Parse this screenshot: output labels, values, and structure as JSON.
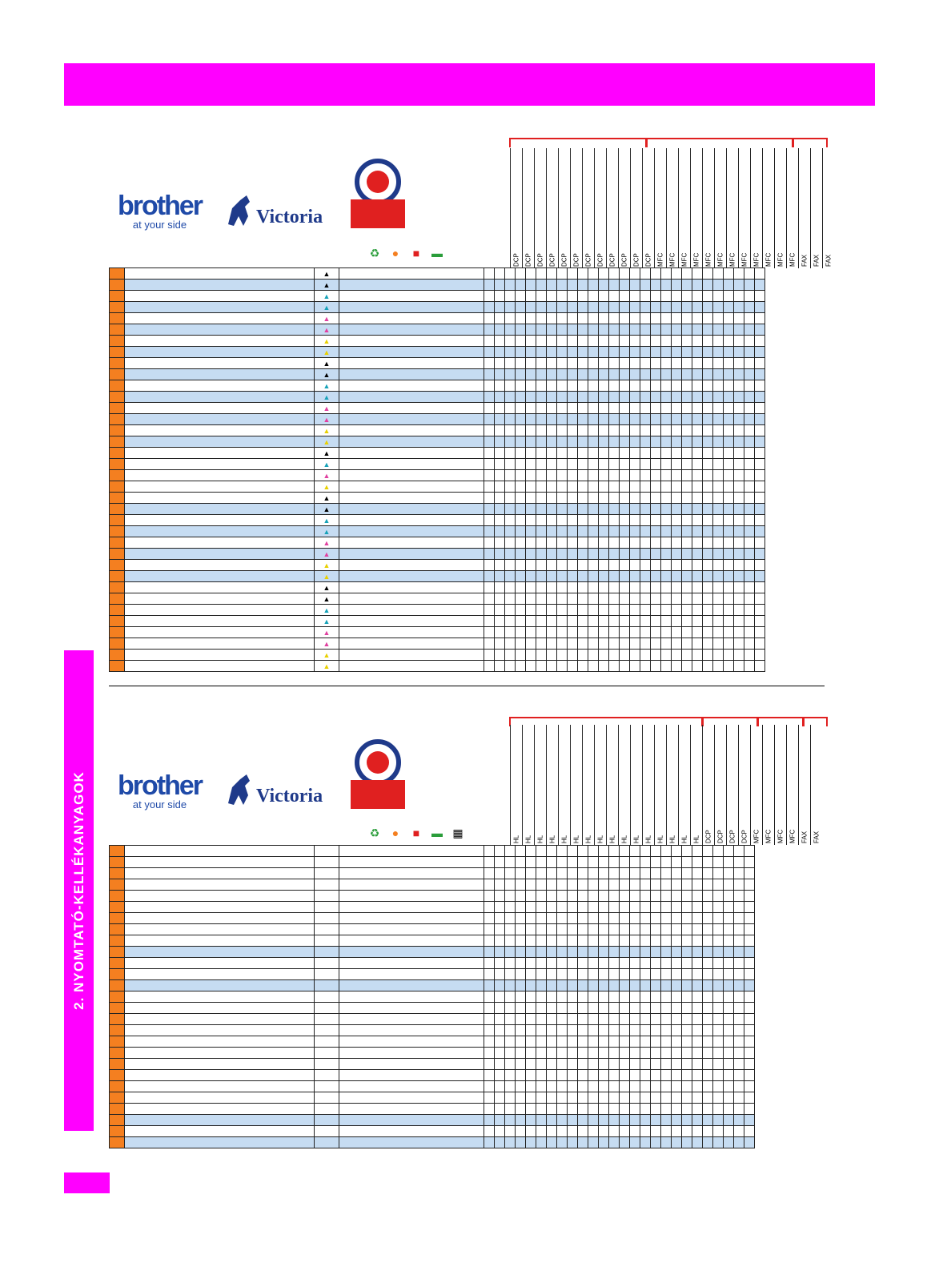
{
  "side_tab": {
    "label": "2. NYOMTATÓ-KELLÉKANYAGOK"
  },
  "logos": {
    "brother_word": "brother",
    "brother_tagline": "at your side",
    "victoria": "Victoria"
  },
  "colors": {
    "magenta": "#ff00ff",
    "orange": "#f47f20",
    "row_highlight": "#c6dcf2",
    "brace_red": "#e02020"
  },
  "table1": {
    "models": [
      "DCP",
      "DCP",
      "DCP",
      "DCP",
      "DCP",
      "DCP",
      "DCP",
      "DCP",
      "DCP",
      "DCP",
      "DCP",
      "DCP",
      "MFC",
      "MFC",
      "MFC",
      "MFC",
      "MFC",
      "MFC",
      "MFC",
      "MFC",
      "MFC",
      "MFC",
      "MFC",
      "MFC",
      "FAX",
      "FAX",
      "FAX"
    ],
    "rows": 36,
    "highlight_rows": [
      1,
      3,
      5,
      7,
      9,
      11,
      13,
      15,
      21,
      23,
      25,
      27
    ],
    "drop_colors": [
      "#000",
      "#000",
      "#17a2b8",
      "#17a2b8",
      "#e040a0",
      "#e040a0",
      "#e8d000",
      "#e8d000",
      "#000",
      "#000",
      "#17a2b8",
      "#17a2b8",
      "#e040a0",
      "#e040a0",
      "#e8d000",
      "#e8d000",
      "#000",
      "#17a2b8",
      "#e040a0",
      "#e8d000",
      "#000",
      "#000",
      "#17a2b8",
      "#17a2b8",
      "#e040a0",
      "#e040a0",
      "#e8d000",
      "#e8d000",
      "#000",
      "#000",
      "#17a2b8",
      "#17a2b8",
      "#e040a0",
      "#e040a0",
      "#e8d000",
      "#e8d000"
    ]
  },
  "table2": {
    "models": [
      "HL",
      "HL",
      "HL",
      "HL",
      "HL",
      "HL",
      "HL",
      "HL",
      "HL",
      "HL",
      "HL",
      "HL",
      "HL",
      "HL",
      "HL",
      "HL",
      "DCP",
      "DCP",
      "DCP",
      "DCP",
      "MFC",
      "MFC",
      "MFC",
      "MFC",
      "FAX",
      "FAX"
    ],
    "rows": 27,
    "highlight_rows": [
      9,
      12,
      24,
      26
    ]
  }
}
